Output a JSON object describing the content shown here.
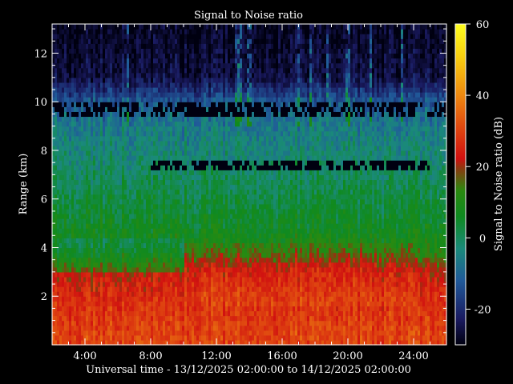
{
  "chart_data": {
    "type": "heatmap",
    "title": "Signal to Noise ratio",
    "xlabel": "Universal time - 13/12/2025 02:00:00 to 14/12/2025 02:00:00",
    "ylabel": "Range (km)",
    "colorbar_label": "Signal to Noise ratio (dB)",
    "x_ticks": [
      {
        "value": 4,
        "label": "4:00"
      },
      {
        "value": 8,
        "label": "8:00"
      },
      {
        "value": 12,
        "label": "12:00"
      },
      {
        "value": 16,
        "label": "16:00"
      },
      {
        "value": 20,
        "label": "20:00"
      },
      {
        "value": 24,
        "label": "24:00"
      }
    ],
    "y_ticks": [
      2,
      4,
      6,
      8,
      10,
      12
    ],
    "xlim": [
      2,
      26
    ],
    "ylim": [
      0,
      13.2
    ],
    "colorbar_ticks": [
      -20,
      0,
      20,
      40,
      60
    ],
    "colorbar_range": [
      -30,
      60
    ],
    "range_profile": [
      {
        "range": 0.5,
        "snr": 30
      },
      {
        "range": 2.0,
        "snr": 26
      },
      {
        "range": 3.0,
        "snr": 22
      },
      {
        "range": 4.0,
        "snr": 10
      },
      {
        "range": 5.0,
        "snr": 6
      },
      {
        "range": 6.0,
        "snr": 3
      },
      {
        "range": 7.0,
        "snr": 0
      },
      {
        "range": 8.0,
        "snr": -3
      },
      {
        "range": 9.0,
        "snr": -6
      },
      {
        "range": 10.0,
        "snr": -12
      },
      {
        "range": 11.0,
        "snr": -25
      },
      {
        "range": 13.0,
        "snr": -28
      }
    ]
  }
}
